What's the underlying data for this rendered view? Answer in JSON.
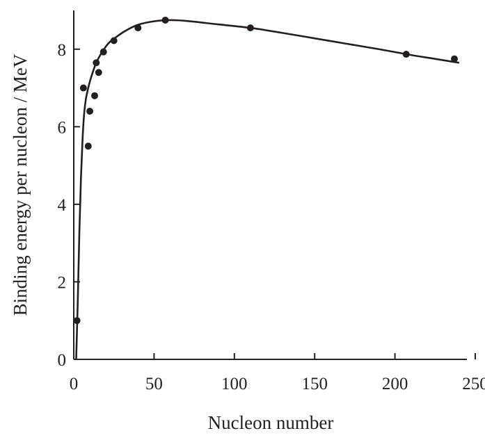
{
  "chart_data": {
    "type": "scatter",
    "title": "",
    "xlabel": "Nucleon number",
    "ylabel": "Binding energy per nucleon / MeV",
    "xlim": [
      0,
      250
    ],
    "ylim": [
      0,
      9
    ],
    "x_ticks": [
      0,
      50,
      100,
      150,
      200,
      250
    ],
    "y_ticks": [
      0,
      2,
      4,
      6,
      8
    ],
    "grid": false,
    "legend": "none",
    "colors": {
      "ink": "#231f20",
      "background": "#ffffff"
    },
    "points": [
      {
        "x": 2,
        "y": 1.0
      },
      {
        "x": 6,
        "y": 7.0
      },
      {
        "x": 9,
        "y": 5.5
      },
      {
        "x": 10,
        "y": 6.4
      },
      {
        "x": 13,
        "y": 6.8
      },
      {
        "x": 14,
        "y": 7.65
      },
      {
        "x": 15.5,
        "y": 7.4
      },
      {
        "x": 18.5,
        "y": 7.93
      },
      {
        "x": 25,
        "y": 8.22
      },
      {
        "x": 40,
        "y": 8.55
      },
      {
        "x": 57,
        "y": 8.75
      },
      {
        "x": 110,
        "y": 8.55
      },
      {
        "x": 207,
        "y": 7.87
      },
      {
        "x": 237,
        "y": 7.75
      }
    ],
    "curve": [
      [
        1.5,
        0
      ],
      [
        2.5,
        1.5
      ],
      [
        3.5,
        3.3
      ],
      [
        4.5,
        4.7
      ],
      [
        5.5,
        5.7
      ],
      [
        6.5,
        6.35
      ],
      [
        7.5,
        6.7
      ],
      [
        9,
        7.0
      ],
      [
        11,
        7.3
      ],
      [
        14,
        7.65
      ],
      [
        18,
        7.95
      ],
      [
        22,
        8.17
      ],
      [
        26,
        8.3
      ],
      [
        32,
        8.47
      ],
      [
        40,
        8.63
      ],
      [
        50,
        8.72
      ],
      [
        60,
        8.75
      ],
      [
        70,
        8.73
      ],
      [
        90,
        8.64
      ],
      [
        110,
        8.55
      ],
      [
        130,
        8.42
      ],
      [
        150,
        8.28
      ],
      [
        170,
        8.14
      ],
      [
        190,
        8.0
      ],
      [
        210,
        7.85
      ],
      [
        225,
        7.75
      ],
      [
        240,
        7.65
      ]
    ]
  }
}
